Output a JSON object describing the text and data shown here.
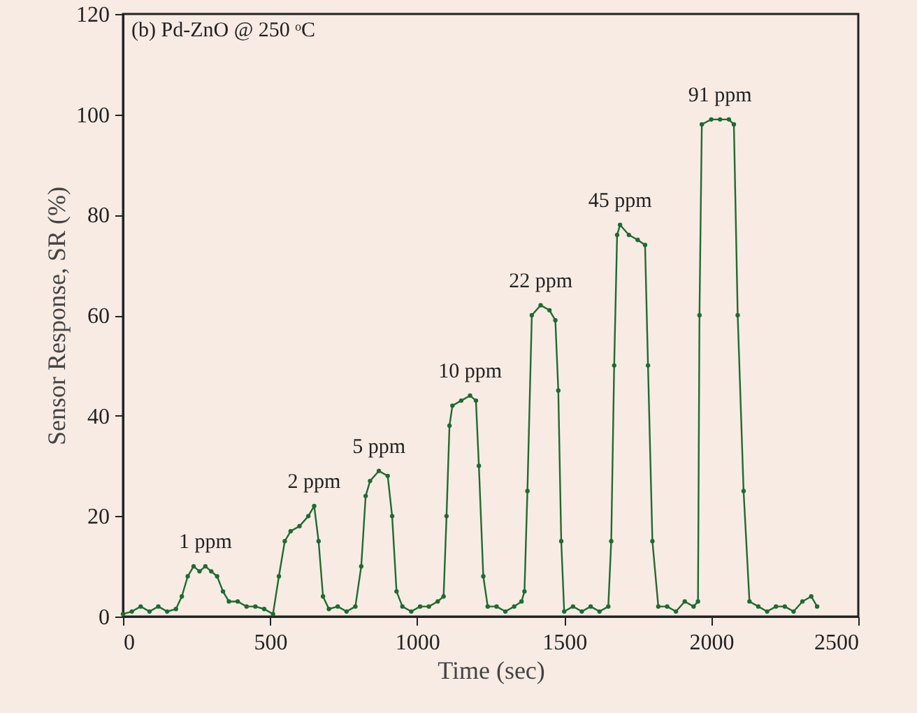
{
  "chart_data": {
    "type": "line",
    "title": "(b) Pd-ZnO @ 250 ᵒC",
    "xlabel": "Time (sec)",
    "ylabel": "Sensor Response, SR (%)",
    "x": [
      0,
      30,
      60,
      90,
      120,
      150,
      180,
      200,
      220,
      240,
      260,
      280,
      300,
      320,
      340,
      360,
      390,
      420,
      450,
      480,
      510,
      530,
      550,
      570,
      600,
      630,
      650,
      665,
      680,
      700,
      730,
      760,
      790,
      810,
      825,
      840,
      870,
      900,
      915,
      930,
      950,
      980,
      1010,
      1040,
      1070,
      1090,
      1100,
      1110,
      1120,
      1150,
      1180,
      1200,
      1210,
      1225,
      1240,
      1270,
      1300,
      1330,
      1355,
      1365,
      1375,
      1390,
      1420,
      1450,
      1470,
      1480,
      1490,
      1500,
      1530,
      1560,
      1590,
      1620,
      1650,
      1660,
      1670,
      1680,
      1690,
      1720,
      1750,
      1775,
      1785,
      1800,
      1820,
      1850,
      1880,
      1910,
      1940,
      1955,
      1960,
      1968,
      2000,
      2030,
      2060,
      2077,
      2090,
      2110,
      2130,
      2160,
      2190,
      2220,
      2250,
      2280,
      2310,
      2340,
      2360
    ],
    "series": [
      {
        "color": "#1e6b30",
        "values": [
          0.5,
          1,
          2,
          1,
          2,
          1,
          1.5,
          4,
          8,
          10,
          9,
          10,
          9,
          8,
          5,
          3,
          3,
          2,
          2,
          1.5,
          0.5,
          8,
          15,
          17,
          18,
          20,
          22,
          15,
          4,
          1.5,
          2,
          1,
          2,
          10,
          24,
          27,
          29,
          28,
          20,
          5,
          2,
          1,
          2,
          2,
          3,
          4,
          20,
          38,
          42,
          43,
          44,
          43,
          30,
          8,
          2,
          2,
          1,
          2,
          3,
          5,
          25,
          60,
          62,
          61,
          59,
          45,
          15,
          1,
          2,
          1,
          2,
          1,
          2,
          15,
          50,
          76,
          78,
          76,
          75,
          74,
          50,
          15,
          2,
          2,
          1,
          3,
          2,
          3,
          60,
          98,
          99,
          99,
          99,
          98,
          60,
          25,
          3,
          2,
          1,
          2,
          2,
          1,
          3,
          4,
          2
        ]
      }
    ],
    "xlim": [
      0,
      2500
    ],
    "xticks": [
      0,
      500,
      1000,
      1500,
      2000,
      2500
    ],
    "ylim": [
      0,
      120
    ],
    "yticks": [
      0,
      20,
      40,
      60,
      80,
      100,
      120
    ],
    "grid": false,
    "marker": "circle",
    "line_style": "solid",
    "annotations": [
      {
        "text": "1 ppm",
        "x": 280,
        "y": 10
      },
      {
        "text": "2 ppm",
        "x": 650,
        "y": 22
      },
      {
        "text": "5 ppm",
        "x": 870,
        "y": 29
      },
      {
        "text": "10 ppm",
        "x": 1180,
        "y": 44
      },
      {
        "text": "22 ppm",
        "x": 1420,
        "y": 62
      },
      {
        "text": "45 ppm",
        "x": 1690,
        "y": 78
      },
      {
        "text": "91 ppm",
        "x": 2030,
        "y": 99
      }
    ]
  }
}
